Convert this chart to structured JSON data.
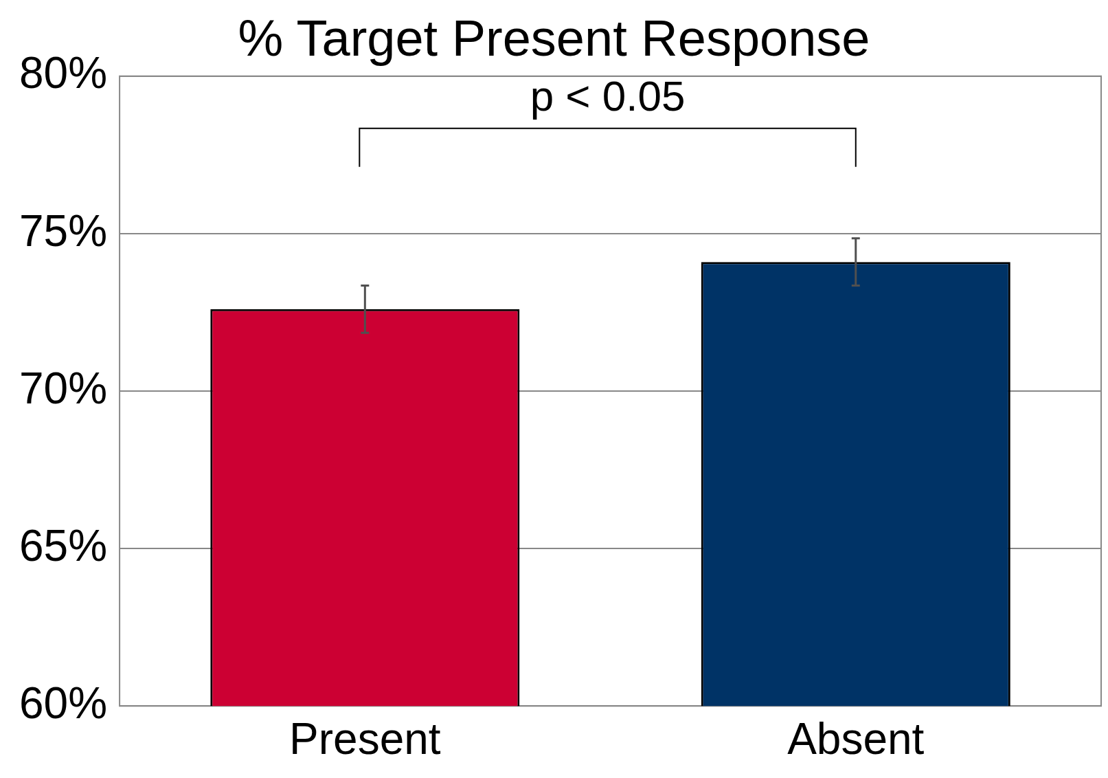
{
  "chart_data": {
    "type": "bar",
    "title": "% Target Present Response",
    "categories": [
      "Present",
      "Absent"
    ],
    "values": [
      72.6,
      74.1
    ],
    "colors": [
      "#cc0033",
      "#003366"
    ],
    "errors": [
      0.75,
      0.75
    ],
    "ylim": [
      60,
      80
    ],
    "yticks": [
      {
        "value": 60,
        "label": "60%"
      },
      {
        "value": 65,
        "label": "65%"
      },
      {
        "value": 70,
        "label": "70%"
      },
      {
        "value": 75,
        "label": "75%"
      },
      {
        "value": 80,
        "label": "80%"
      }
    ],
    "grid": "y",
    "annotations": [
      "p < 0.05"
    ]
  }
}
